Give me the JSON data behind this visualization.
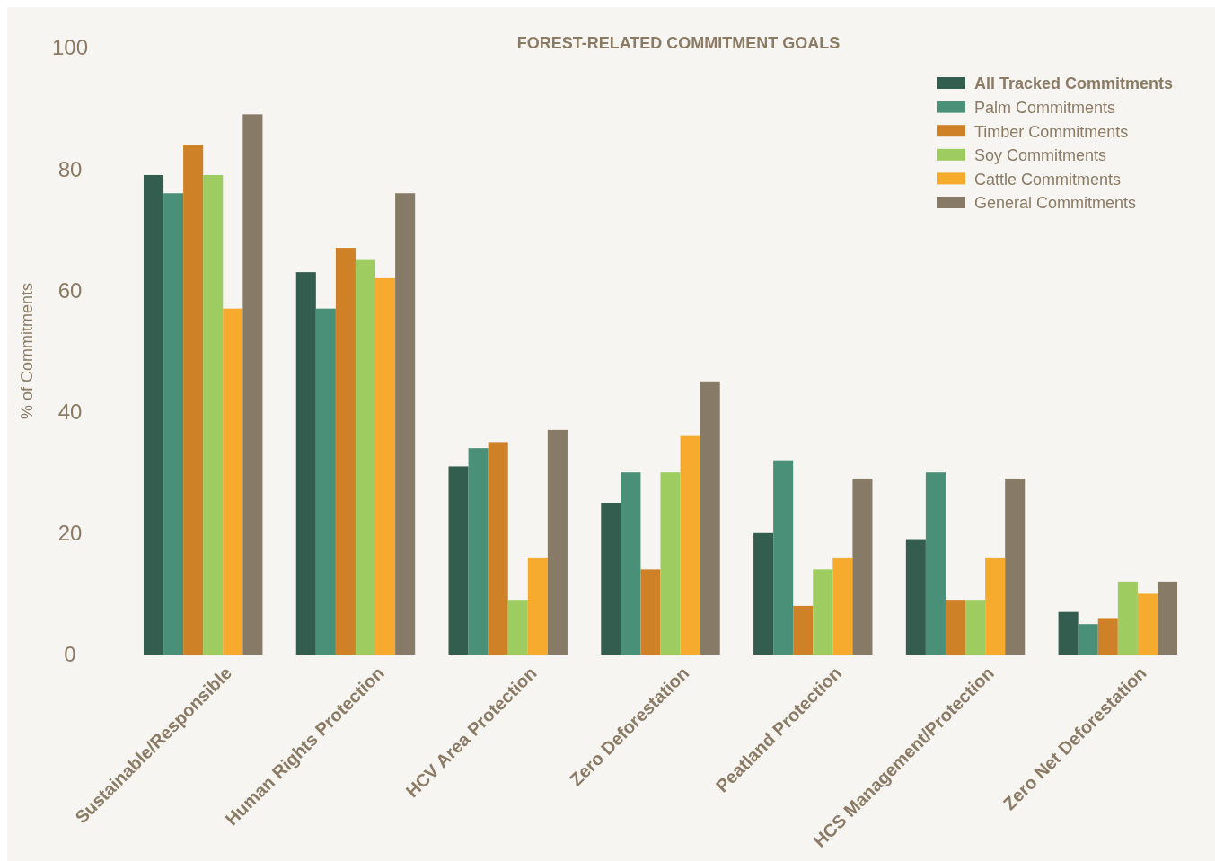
{
  "chart_data": {
    "type": "bar",
    "title": "FOREST-RELATED COMMITMENT GOALS",
    "ylabel": "% of Commitments",
    "categories": [
      "Sustainable/Responsible",
      "Human Rights Protection",
      "HCV Area Protection",
      "Zero Deforestation",
      "Peatland Protection",
      "HCS Management/Protection",
      "Zero Net Deforestation"
    ],
    "series": [
      {
        "name": "All Tracked Commitments",
        "color": "#335e4f",
        "values": [
          79,
          63,
          31,
          25,
          20,
          19,
          7
        ]
      },
      {
        "name": "Palm Commitments",
        "color": "#4a9079",
        "values": [
          76,
          57,
          34,
          30,
          32,
          30,
          5
        ]
      },
      {
        "name": "Timber Commitments",
        "color": "#cf8128",
        "values": [
          84,
          67,
          35,
          14,
          8,
          9,
          6
        ]
      },
      {
        "name": "Soy Commitments",
        "color": "#9fcc60",
        "values": [
          79,
          65,
          9,
          30,
          14,
          9,
          12
        ]
      },
      {
        "name": "Cattle Commitments",
        "color": "#f6ab2f",
        "values": [
          57,
          62,
          16,
          36,
          16,
          16,
          10
        ]
      },
      {
        "name": "General Commitments",
        "color": "#877a66",
        "values": [
          89,
          76,
          37,
          45,
          29,
          29,
          12
        ]
      }
    ],
    "ylim": [
      0,
      100
    ],
    "yticks": [
      0,
      20,
      40,
      60,
      80,
      100
    ],
    "grid": false,
    "legend": "top right"
  }
}
